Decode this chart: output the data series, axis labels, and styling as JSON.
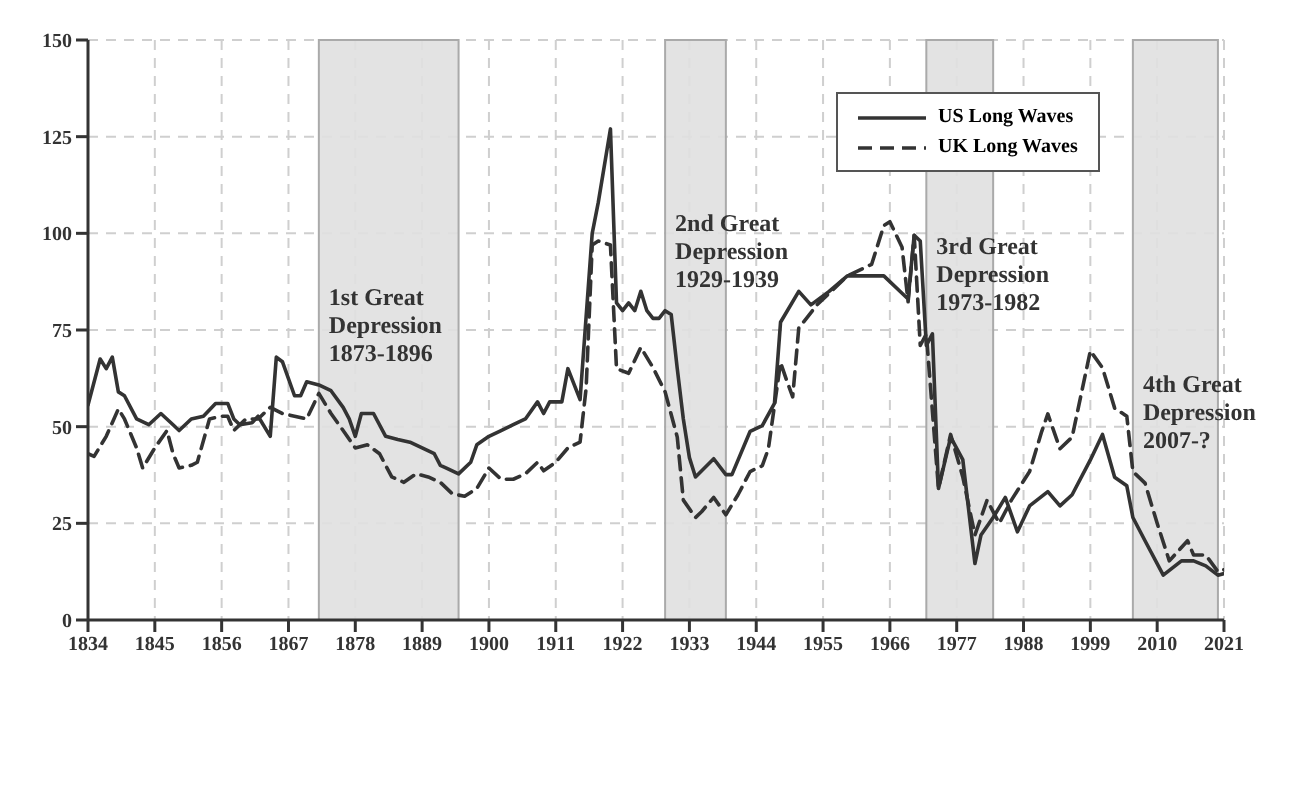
{
  "chart_data": {
    "type": "line",
    "xlim": [
      1834,
      2021
    ],
    "xticks": [
      1834,
      1845,
      1856,
      1867,
      1878,
      1889,
      1900,
      1911,
      1922,
      1933,
      1944,
      1955,
      1966,
      1977,
      1988,
      1999,
      2010,
      2021
    ],
    "ylim": [
      0,
      150
    ],
    "yticks": [
      0,
      25,
      50,
      75,
      100,
      125,
      150
    ],
    "grid": true,
    "legend": "top",
    "marker": "none",
    "series": [
      {
        "name": "US Long Waves",
        "color": "#333333",
        "line_style": "solid",
        "x": [
          1834,
          1836,
          1837,
          1838,
          1839,
          1840,
          1842,
          1844,
          1846,
          1848,
          1849,
          1851,
          1853,
          1855,
          1857,
          1858,
          1859,
          1861,
          1862,
          1864,
          1865,
          1866,
          1868,
          1869,
          1870,
          1872,
          1874,
          1876,
          1877,
          1878,
          1879,
          1881,
          1883,
          1885,
          1887,
          1889,
          1891,
          1892,
          1893,
          1895,
          1897,
          1898,
          1900,
          1902,
          1904,
          1906,
          1908,
          1909,
          1910,
          1912,
          1913,
          1915,
          1917,
          1918,
          1920,
          1921,
          1922,
          1923,
          1924,
          1925,
          1926,
          1927,
          1928,
          1929,
          1930,
          1931,
          1932,
          1933,
          1934,
          1937,
          1939,
          1940,
          1943,
          1945,
          1947,
          1948,
          1951,
          1953,
          1956,
          1959,
          1965,
          1968,
          1969,
          1970,
          1971,
          1972,
          1973,
          1974,
          1976,
          1978,
          1980,
          1981,
          1983,
          1985,
          1987,
          1989,
          1992,
          1994,
          1996,
          1999,
          2001,
          2003,
          2005,
          2006,
          2008,
          2011,
          2014,
          2016,
          2018,
          2020,
          2021
        ],
        "values": [
          55.6,
          67.5,
          65,
          68,
          59,
          58,
          52,
          50.5,
          53.4,
          50.5,
          49,
          52,
          52.7,
          56,
          56,
          52,
          50.5,
          51,
          52.7,
          47.5,
          68,
          66.8,
          58,
          58,
          61.6,
          60.8,
          59.3,
          55,
          52,
          47.5,
          53.4,
          53.4,
          47.5,
          46.7,
          46,
          44.5,
          43,
          40,
          39.3,
          37.8,
          40.8,
          45.3,
          47.5,
          49,
          50.5,
          52,
          56.4,
          53.4,
          56.4,
          56.4,
          65,
          57,
          100,
          108,
          127,
          82,
          80,
          82,
          80,
          85,
          80,
          78,
          78,
          80,
          79,
          65,
          52,
          42,
          37,
          41.7,
          37.6,
          37.6,
          48.8,
          50.3,
          56,
          77,
          85,
          81.5,
          85,
          89,
          89,
          84.5,
          83,
          99.5,
          98,
          71,
          74,
          34,
          47.3,
          41.5,
          14.6,
          22,
          26.5,
          31.7,
          22.8,
          29.5,
          33.2,
          29.5,
          32.4,
          41.4,
          48,
          36.9,
          34.7,
          26.5,
          20.5,
          11.6,
          15.3,
          15.3,
          14,
          11.6,
          12
        ]
      },
      {
        "name": "UK Long Waves",
        "color": "#333333",
        "line_style": "dashed",
        "x": [
          1834,
          1835,
          1837,
          1839,
          1840,
          1842,
          1843,
          1845,
          1847,
          1848,
          1849,
          1851,
          1852,
          1854,
          1856,
          1857,
          1858,
          1860,
          1862,
          1864,
          1866,
          1868,
          1870,
          1872,
          1874,
          1876,
          1878,
          1880,
          1882,
          1884,
          1886,
          1888,
          1890,
          1892,
          1894,
          1896,
          1898,
          1900,
          1902,
          1904,
          1906,
          1908,
          1909,
          1911,
          1913,
          1915,
          1916,
          1917,
          1918,
          1920,
          1921,
          1923,
          1925,
          1927,
          1929,
          1931,
          1932,
          1934,
          1935,
          1937,
          1939,
          1941,
          1943,
          1945,
          1946,
          1948,
          1949,
          1950,
          1951,
          1954,
          1959,
          1963,
          1965,
          1966,
          1968,
          1969,
          1970,
          1971,
          1972,
          1974,
          1976,
          1978,
          1980,
          1982,
          1984,
          1986,
          1989,
          1991,
          1992,
          1994,
          1996,
          1999,
          2001,
          2003,
          2005,
          2006,
          2008,
          2010,
          2012,
          2015,
          2016,
          2018,
          2020,
          2021
        ],
        "values": [
          43,
          42.3,
          47.5,
          54.6,
          52,
          44.5,
          39.3,
          44.5,
          49,
          43,
          39.3,
          40,
          40.8,
          52,
          52.7,
          52.7,
          49,
          52,
          52,
          55,
          53.4,
          52.7,
          52,
          58.6,
          53.4,
          49,
          44.5,
          45.3,
          43,
          37,
          35.6,
          37.8,
          37,
          35.6,
          32.6,
          32,
          34,
          39.3,
          36.4,
          36.4,
          37.8,
          40.8,
          38.6,
          40.8,
          44.5,
          46,
          60,
          97,
          98,
          97,
          65,
          63.8,
          70.5,
          65.3,
          59,
          47.3,
          31,
          26.5,
          28,
          31.7,
          27.2,
          32.4,
          38.4,
          39.9,
          44.3,
          66.6,
          62,
          57.7,
          75.5,
          81.5,
          89,
          92,
          102,
          103,
          96.4,
          82.3,
          99.5,
          71,
          74,
          34,
          48,
          37,
          22,
          31,
          25,
          31,
          38.4,
          48.8,
          53.3,
          44.3,
          47.3,
          69.6,
          65.2,
          54.8,
          52.7,
          38.4,
          35.4,
          25,
          15.3,
          20.5,
          16.8,
          16.8,
          12.5,
          13
        ]
      }
    ],
    "bands": [
      {
        "axis": "x",
        "from": 1872,
        "to": 1895,
        "color": "#e0e0e0",
        "label": "1st Great\nDepression\n1873-1896"
      },
      {
        "axis": "x",
        "from": 1929,
        "to": 1939,
        "color": "#e0e0e0",
        "label": "2nd Great\nDepression\n1929-1939"
      },
      {
        "axis": "x",
        "from": 1972,
        "to": 1983,
        "color": "#e0e0e0",
        "label": "3rd Great\nDepression\n1973-1982"
      },
      {
        "axis": "x",
        "from": 2006,
        "to": 2020,
        "color": "#e0e0e0",
        "label": "4th Great\nDepression\n2007-?"
      }
    ]
  }
}
